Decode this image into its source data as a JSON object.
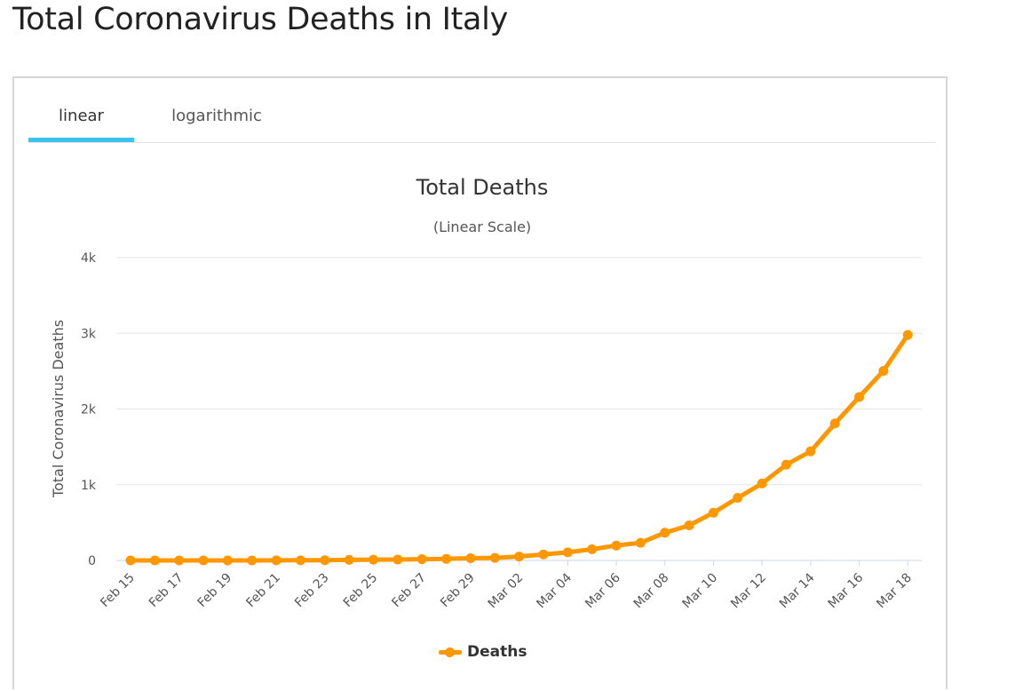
{
  "page": {
    "title": "Total Coronavirus Deaths in Italy"
  },
  "tabs": [
    {
      "label": "linear",
      "active": true
    },
    {
      "label": "logarithmic",
      "active": false
    }
  ],
  "colors": {
    "series": "#ff9800",
    "tab_indicator": "#3bc4ef",
    "gridline": "#e6e6e6"
  },
  "chart_data": {
    "type": "line",
    "title": "Total Deaths",
    "subtitle": "(Linear Scale)",
    "ylabel": "Total Coronavirus Deaths",
    "xlabel": "",
    "ylim": [
      0,
      4000
    ],
    "yticks": [
      0,
      1000,
      2000,
      3000,
      4000
    ],
    "ytick_labels": [
      "0",
      "1k",
      "2k",
      "3k",
      "4k"
    ],
    "grid": true,
    "legend_position": "bottom-center",
    "x_tick_labels": [
      "Feb 15",
      "Feb 17",
      "Feb 19",
      "Feb 21",
      "Feb 23",
      "Feb 25",
      "Feb 27",
      "Feb 29",
      "Mar 02",
      "Mar 04",
      "Mar 06",
      "Mar 08",
      "Mar 10",
      "Mar 12",
      "Mar 14",
      "Mar 16",
      "Mar 18"
    ],
    "x": [
      "Feb 15",
      "Feb 16",
      "Feb 17",
      "Feb 18",
      "Feb 19",
      "Feb 20",
      "Feb 21",
      "Feb 22",
      "Feb 23",
      "Feb 24",
      "Feb 25",
      "Feb 26",
      "Feb 27",
      "Feb 28",
      "Feb 29",
      "Mar 01",
      "Mar 02",
      "Mar 03",
      "Mar 04",
      "Mar 05",
      "Mar 06",
      "Mar 07",
      "Mar 08",
      "Mar 09",
      "Mar 10",
      "Mar 11",
      "Mar 12",
      "Mar 13",
      "Mar 14",
      "Mar 15",
      "Mar 16",
      "Mar 17",
      "Mar 18"
    ],
    "series": [
      {
        "name": "Deaths",
        "values": [
          0,
          0,
          0,
          0,
          0,
          0,
          1,
          2,
          3,
          7,
          10,
          12,
          17,
          21,
          29,
          34,
          52,
          79,
          107,
          148,
          197,
          233,
          366,
          463,
          631,
          827,
          1016,
          1266,
          1441,
          1809,
          2158,
          2503,
          2978
        ]
      }
    ]
  }
}
